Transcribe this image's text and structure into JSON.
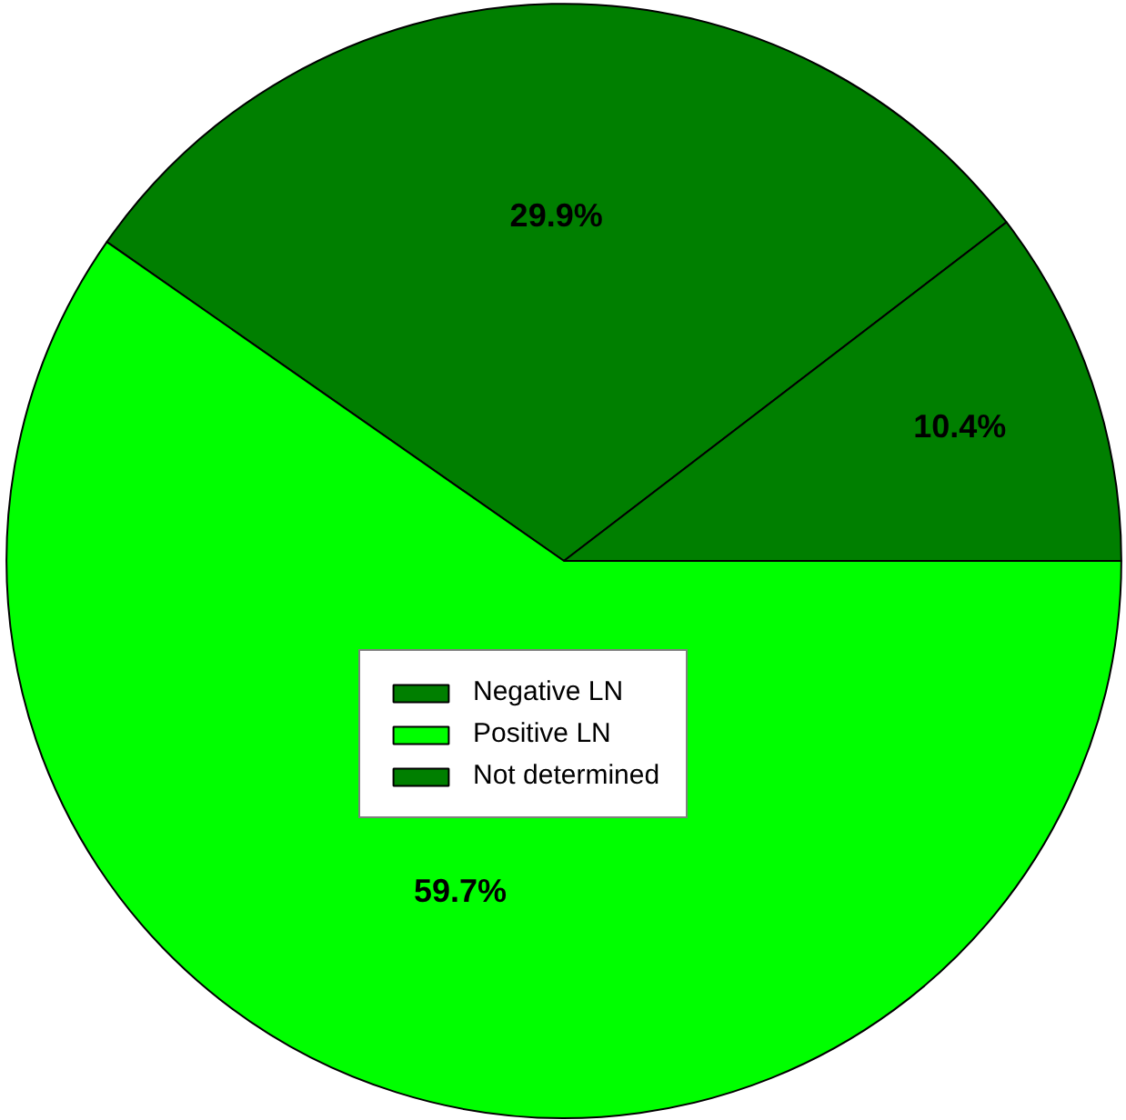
{
  "chart_data": {
    "type": "pie",
    "categories": [
      "Negative LN",
      "Positive LN",
      "Not determined"
    ],
    "values": [
      29.9,
      59.7,
      10.4
    ],
    "colors": [
      "#007f00",
      "#00ff00",
      "#007f00"
    ],
    "value_labels": [
      "29.9%",
      "59.7%",
      "10.4%"
    ],
    "legend": "center"
  }
}
